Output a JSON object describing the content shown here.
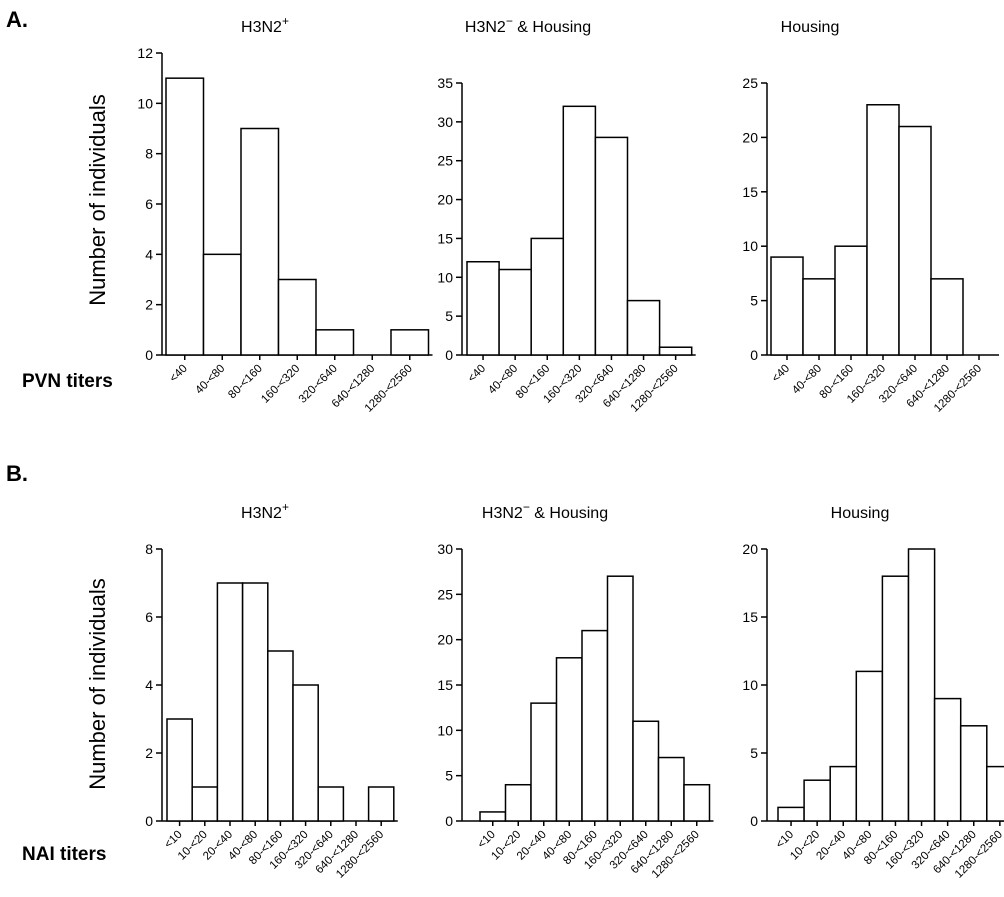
{
  "panels": [
    {
      "label": "A.",
      "row_label": "PVN titers",
      "ylabel": "Number of individuals",
      "charts": [
        {
          "title": "H3N2",
          "title_sup": "+",
          "title_tail": "",
          "type": "bar",
          "categories": [
            "<40",
            "40-<80",
            "80-<160",
            "160-<320",
            "320-<640",
            "640-<1280",
            "1280-<2560"
          ],
          "values": [
            11,
            4,
            9,
            3,
            1,
            0,
            1
          ],
          "ylim": [
            0,
            12
          ],
          "yticks": [
            0,
            2,
            4,
            6,
            8,
            10,
            12
          ]
        },
        {
          "title": "H3N2",
          "title_sup": "−",
          "title_tail": " & Housing",
          "type": "bar",
          "categories": [
            "<40",
            "40-<80",
            "80-<160",
            "160-<320",
            "320-<640",
            "640-<1280",
            "1280-<2560"
          ],
          "values": [
            12,
            11,
            15,
            32,
            28,
            7,
            1
          ],
          "ylim": [
            0,
            35
          ],
          "yticks": [
            0,
            5,
            10,
            15,
            20,
            25,
            30,
            35
          ]
        },
        {
          "title": "Housing",
          "title_sup": "",
          "title_tail": "",
          "type": "bar",
          "categories": [
            "<40",
            "40-<80",
            "80-<160",
            "160-<320",
            "320-<640",
            "640-<1280",
            "1280-<2560"
          ],
          "values": [
            9,
            7,
            10,
            23,
            21,
            7,
            0
          ],
          "ylim": [
            0,
            25
          ],
          "yticks": [
            0,
            5,
            10,
            15,
            20,
            25
          ]
        }
      ]
    },
    {
      "label": "B.",
      "row_label": "NAI titers",
      "ylabel": "Number of individuals",
      "charts": [
        {
          "title": "H3N2",
          "title_sup": "+",
          "title_tail": "",
          "type": "bar",
          "categories": [
            "<10",
            "10-<20",
            "20-<40",
            "40-<80",
            "80-<160",
            "160-<320",
            "320-<640",
            "640-<1280",
            "1280-<2560"
          ],
          "values": [
            3,
            1,
            7,
            7,
            5,
            4,
            1,
            0,
            1
          ],
          "ylim": [
            0,
            8
          ],
          "yticks": [
            0,
            2,
            4,
            6,
            8
          ]
        },
        {
          "title": "H3N2",
          "title_sup": "−",
          "title_tail": " & Housing",
          "type": "bar",
          "categories": [
            "<10",
            "10-<20",
            "20-<40",
            "40-<80",
            "80-<160",
            "160-<320",
            "320-<640",
            "640-<1280",
            "1280-<2560"
          ],
          "values": [
            1,
            4,
            13,
            18,
            21,
            27,
            11,
            7,
            4
          ],
          "ylim": [
            0,
            30
          ],
          "yticks": [
            0,
            5,
            10,
            15,
            20,
            25,
            30
          ]
        },
        {
          "title": "Housing",
          "title_sup": "",
          "title_tail": "",
          "type": "bar",
          "categories": [
            "<10",
            "10-<20",
            "20-<40",
            "40-<80",
            "80-<160",
            "160-<320",
            "320-<640",
            "640-<1280",
            "1280-<2560"
          ],
          "values": [
            1,
            3,
            4,
            11,
            18,
            20,
            9,
            7,
            4
          ],
          "ylim": [
            0,
            20
          ],
          "yticks": [
            0,
            5,
            10,
            15,
            20
          ]
        }
      ]
    }
  ],
  "chart_data": [
    {
      "type": "bar",
      "title": "H3N2+",
      "categories": [
        "<40",
        "40-<80",
        "80-<160",
        "160-<320",
        "320-<640",
        "640-<1280",
        "1280-<2560"
      ],
      "values": [
        11,
        4,
        9,
        3,
        1,
        0,
        1
      ],
      "xlabel": "PVN titers",
      "ylabel": "Number of individuals",
      "ylim": [
        0,
        12
      ]
    },
    {
      "type": "bar",
      "title": "H3N2− & Housing",
      "categories": [
        "<40",
        "40-<80",
        "80-<160",
        "160-<320",
        "320-<640",
        "640-<1280",
        "1280-<2560"
      ],
      "values": [
        12,
        11,
        15,
        32,
        28,
        7,
        1
      ],
      "xlabel": "PVN titers",
      "ylabel": "Number of individuals",
      "ylim": [
        0,
        35
      ]
    },
    {
      "type": "bar",
      "title": "Housing",
      "categories": [
        "<40",
        "40-<80",
        "80-<160",
        "160-<320",
        "320-<640",
        "640-<1280",
        "1280-<2560"
      ],
      "values": [
        9,
        7,
        10,
        23,
        21,
        7,
        0
      ],
      "xlabel": "PVN titers",
      "ylabel": "Number of individuals",
      "ylim": [
        0,
        25
      ]
    },
    {
      "type": "bar",
      "title": "H3N2+",
      "categories": [
        "<10",
        "10-<20",
        "20-<40",
        "40-<80",
        "80-<160",
        "160-<320",
        "320-<640",
        "640-<1280",
        "1280-<2560"
      ],
      "values": [
        3,
        1,
        7,
        7,
        5,
        4,
        1,
        0,
        1
      ],
      "xlabel": "NAI titers",
      "ylabel": "Number of individuals",
      "ylim": [
        0,
        8
      ]
    },
    {
      "type": "bar",
      "title": "H3N2− & Housing",
      "categories": [
        "<10",
        "10-<20",
        "20-<40",
        "40-<80",
        "80-<160",
        "160-<320",
        "320-<640",
        "640-<1280",
        "1280-<2560"
      ],
      "values": [
        1,
        4,
        13,
        18,
        21,
        27,
        11,
        7,
        4
      ],
      "xlabel": "NAI titers",
      "ylabel": "Number of individuals",
      "ylim": [
        0,
        30
      ]
    },
    {
      "type": "bar",
      "title": "Housing",
      "categories": [
        "<10",
        "10-<20",
        "20-<40",
        "40-<80",
        "80-<160",
        "160-<320",
        "320-<640",
        "640-<1280",
        "1280-<2560"
      ],
      "values": [
        1,
        3,
        4,
        11,
        18,
        20,
        9,
        7,
        4
      ],
      "xlabel": "NAI titers",
      "ylabel": "Number of individuals",
      "ylim": [
        0,
        20
      ]
    }
  ]
}
